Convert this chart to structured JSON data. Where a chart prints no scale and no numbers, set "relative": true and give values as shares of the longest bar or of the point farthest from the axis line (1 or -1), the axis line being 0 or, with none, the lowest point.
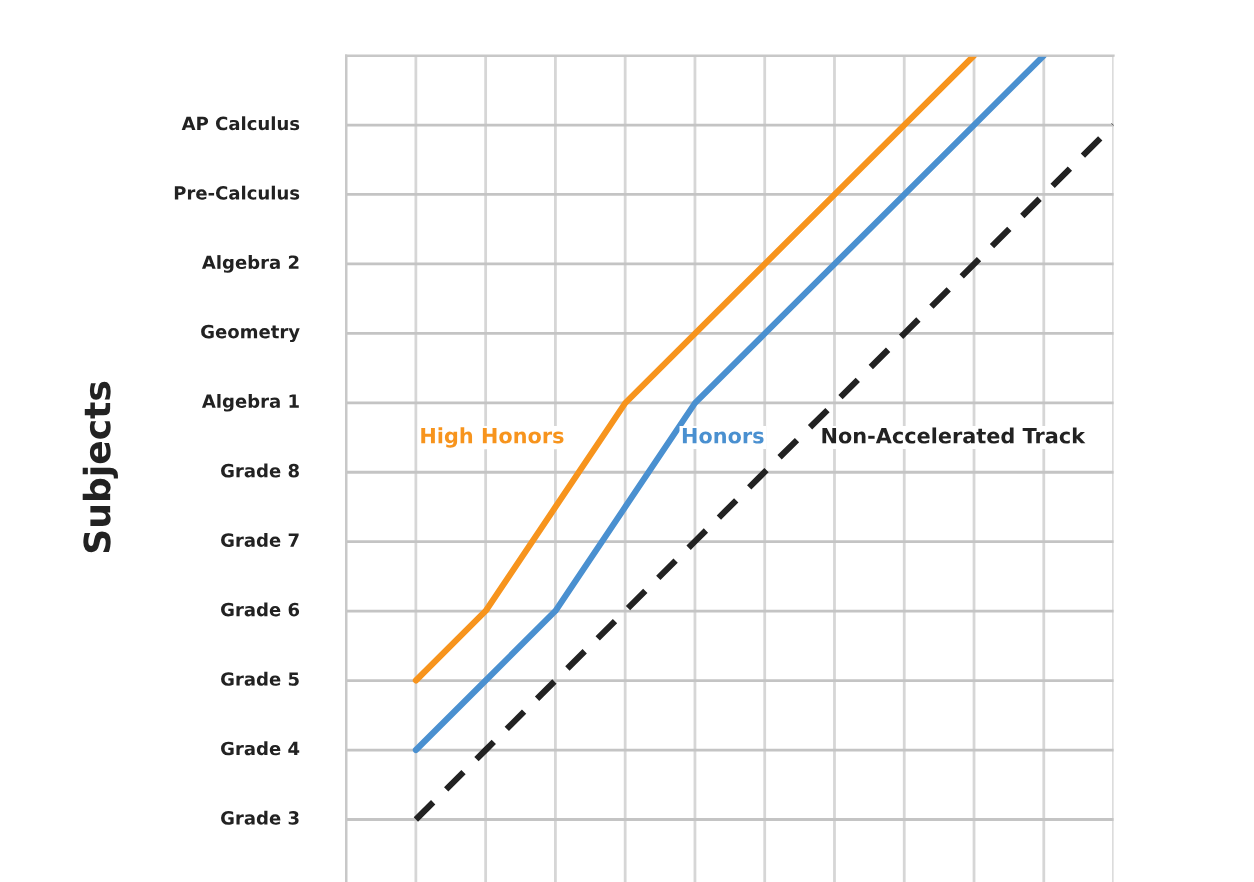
{
  "chart_data": {
    "type": "line",
    "relative": true,
    "categories": [
      null,
      null,
      null,
      null,
      null,
      null,
      null,
      null,
      null,
      null,
      null,
      null
    ],
    "series": [
      {
        "name": "High Honors",
        "color": "#f7941d",
        "values": [
          null,
          0.182,
          0.273,
          0.409,
          0.545,
          0.636,
          0.727,
          0.818,
          0.909,
          1,
          null,
          null
        ],
        "line_style": "solid"
      },
      {
        "name": "Honors",
        "color": "#4a90d0",
        "values": [
          null,
          0.091,
          0.182,
          0.273,
          0.409,
          0.545,
          0.636,
          0.727,
          0.818,
          0.909,
          1,
          null
        ],
        "line_style": "solid"
      },
      {
        "name": "Non-Accelerated Track",
        "color": "#222222",
        "values": [
          null,
          0,
          0.091,
          0.182,
          0.273,
          0.364,
          0.455,
          0.545,
          0.636,
          0.727,
          0.818,
          0.909
        ],
        "line_style": "dashed"
      }
    ],
    "annotations": [
      "Subjects",
      "Grade 3",
      "Grade 4",
      "Grade 5",
      "Grade 6",
      "Grade 7",
      "Grade 8",
      "Algebra 1",
      "Geometry",
      "Algebra 2",
      "Pre-Calculus",
      "AP Calculus"
    ],
    "grid": true,
    "marker": "none"
  }
}
